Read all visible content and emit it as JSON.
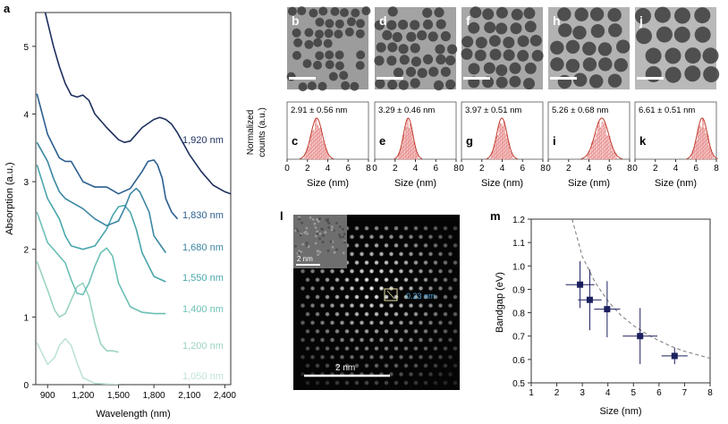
{
  "figure": {
    "panel_a": {
      "letter": "a",
      "ylabel": "Absorption (a.u.)",
      "xlabel": "Wavelength (nm)",
      "yticks": [
        "0",
        "1",
        "2",
        "3",
        "4",
        "5"
      ],
      "xticks": [
        "900",
        "1,200",
        "1,500",
        "1,800",
        "2,100",
        "2,400"
      ],
      "peak_labels": [
        "1,920 nm",
        "1,830 nm",
        "1,680 nm",
        "1,550 nm",
        "1,400 nm",
        "1,200 nm",
        "1,050 nm"
      ]
    },
    "tem_letters": [
      "b",
      "d",
      "f",
      "h",
      "j"
    ],
    "histograms": [
      {
        "letter": "c",
        "label": "2.91 ± 0.56 nm",
        "mean": 2.91,
        "sd": 0.56
      },
      {
        "letter": "e",
        "label": "3.29 ± 0.46 nm",
        "mean": 3.29,
        "sd": 0.46
      },
      {
        "letter": "g",
        "label": "3.97 ± 0.51 nm",
        "mean": 3.97,
        "sd": 0.51
      },
      {
        "letter": "i",
        "label": "5.26 ± 0.68 nm",
        "mean": 5.26,
        "sd": 0.68
      },
      {
        "letter": "k",
        "label": "6.61 ± 0.51 nm",
        "mean": 6.61,
        "sd": 0.51
      }
    ],
    "hist_ylabel_line1": "Normalized",
    "hist_ylabel_line2": "counts (a.u.)",
    "hist_xlabel": "Size (nm)",
    "hist_xticks": [
      "0",
      "2",
      "4",
      "6",
      "8"
    ],
    "panel_l": {
      "letter": "l",
      "inset_scale": "2 nm",
      "main_scale": "2 nm",
      "spacing_label": "0.23 nm"
    },
    "panel_m": {
      "letter": "m",
      "xlabel": "Size (nm)",
      "ylabel": "Bandgap (eV)",
      "xticks": [
        "1",
        "2",
        "3",
        "4",
        "5",
        "6",
        "7",
        "8"
      ],
      "yticks": [
        "0.5",
        "0.6",
        "0.7",
        "0.8",
        "0.9",
        "1.0",
        "1.1",
        "1.2"
      ]
    }
  },
  "chart_data": [
    {
      "type": "line",
      "id": "a",
      "title": "",
      "xlabel": "Wavelength (nm)",
      "ylabel": "Absorption (a.u.)",
      "xlim": [
        800,
        2450
      ],
      "ylim": [
        0,
        5.5
      ],
      "series": [
        {
          "name": "1,050 nm",
          "color": "#bfe3d2",
          "x": [
            810,
            900,
            960,
            1000,
            1050,
            1100,
            1150,
            1200,
            1300,
            1400,
            1500
          ],
          "y": [
            0.62,
            0.3,
            0.4,
            0.58,
            0.68,
            0.58,
            0.32,
            0.1,
            0.02,
            0.01,
            0.0
          ]
        },
        {
          "name": "1,200 nm",
          "color": "#9bd3c0",
          "x": [
            810,
            900,
            960,
            1000,
            1050,
            1100,
            1150,
            1200,
            1250,
            1300,
            1350,
            1400,
            1450,
            1500
          ],
          "y": [
            1.82,
            1.4,
            1.1,
            1.0,
            1.05,
            1.25,
            1.45,
            1.5,
            1.3,
            0.9,
            0.6,
            0.5,
            0.5,
            0.48
          ]
        },
        {
          "name": "1,400 nm",
          "color": "#6cc0b6",
          "x": [
            810,
            900,
            950,
            1000,
            1050,
            1100,
            1150,
            1200,
            1250,
            1300,
            1350,
            1400,
            1450,
            1500,
            1600,
            1700,
            1800,
            1900
          ],
          "y": [
            2.55,
            2.1,
            2.0,
            1.9,
            1.8,
            1.55,
            1.35,
            1.33,
            1.5,
            1.75,
            1.95,
            2.02,
            1.9,
            1.5,
            1.15,
            1.07,
            1.05,
            1.05
          ]
        },
        {
          "name": "1,550 nm",
          "color": "#4aa6ad",
          "x": [
            810,
            900,
            950,
            1000,
            1050,
            1100,
            1200,
            1300,
            1400,
            1450,
            1500,
            1550,
            1600,
            1650,
            1700,
            1800,
            1900
          ],
          "y": [
            3.25,
            2.75,
            2.6,
            2.45,
            2.2,
            2.05,
            2.0,
            2.05,
            2.3,
            2.5,
            2.63,
            2.65,
            2.55,
            2.3,
            1.95,
            1.6,
            1.52
          ]
        },
        {
          "name": "1,680 nm",
          "color": "#3a86a3",
          "x": [
            810,
            900,
            950,
            1000,
            1050,
            1100,
            1200,
            1300,
            1400,
            1500,
            1550,
            1600,
            1650,
            1680,
            1720,
            1760,
            1800,
            1900
          ],
          "y": [
            3.58,
            3.3,
            3.05,
            2.85,
            2.75,
            2.7,
            2.6,
            2.45,
            2.35,
            2.42,
            2.6,
            2.82,
            2.9,
            2.85,
            2.7,
            2.55,
            2.2,
            1.95
          ]
        },
        {
          "name": "1,830 nm",
          "color": "#2b5f8f",
          "x": [
            810,
            900,
            1000,
            1050,
            1100,
            1200,
            1300,
            1400,
            1500,
            1600,
            1700,
            1750,
            1800,
            1830,
            1870,
            1900,
            1950,
            2000
          ],
          "y": [
            4.3,
            3.7,
            3.35,
            3.3,
            3.3,
            3.0,
            2.92,
            2.92,
            2.82,
            2.9,
            3.15,
            3.3,
            3.32,
            3.25,
            3.05,
            2.75,
            2.55,
            2.45
          ]
        },
        {
          "name": "1,920 nm",
          "color": "#1c2f5e",
          "x": [
            880,
            950,
            1000,
            1050,
            1100,
            1150,
            1200,
            1250,
            1300,
            1400,
            1500,
            1550,
            1600,
            1700,
            1800,
            1850,
            1900,
            1950,
            2000,
            2100,
            2200,
            2300,
            2400,
            2450
          ],
          "y": [
            5.5,
            5.0,
            4.7,
            4.45,
            4.28,
            4.25,
            4.28,
            4.2,
            4.0,
            3.8,
            3.62,
            3.58,
            3.6,
            3.8,
            3.92,
            3.95,
            3.92,
            3.85,
            3.72,
            3.4,
            3.15,
            2.95,
            2.85,
            2.82
          ]
        }
      ]
    },
    {
      "type": "bar",
      "id": "c",
      "xlabel": "Size (nm)",
      "ylabel": "Normalized counts (a.u.)",
      "xlim": [
        0,
        8
      ],
      "mean": 2.91,
      "sd": 0.56
    },
    {
      "type": "bar",
      "id": "e",
      "xlabel": "Size (nm)",
      "xlim": [
        0,
        8
      ],
      "mean": 3.29,
      "sd": 0.46
    },
    {
      "type": "bar",
      "id": "g",
      "xlabel": "Size (nm)",
      "xlim": [
        0,
        8
      ],
      "mean": 3.97,
      "sd": 0.51
    },
    {
      "type": "bar",
      "id": "i",
      "xlabel": "Size (nm)",
      "xlim": [
        0,
        8
      ],
      "mean": 5.26,
      "sd": 0.68
    },
    {
      "type": "bar",
      "id": "k",
      "xlabel": "Size (nm)",
      "xlim": [
        0,
        8
      ],
      "mean": 6.61,
      "sd": 0.51
    },
    {
      "type": "scatter",
      "id": "m",
      "xlabel": "Size (nm)",
      "ylabel": "Bandgap (eV)",
      "xlim": [
        1,
        8
      ],
      "ylim": [
        0.5,
        1.2
      ],
      "points": [
        {
          "x": 2.91,
          "y": 0.92,
          "xerr": 0.56,
          "yerr": 0.1
        },
        {
          "x": 3.29,
          "y": 0.855,
          "xerr": 0.46,
          "yerr": 0.13
        },
        {
          "x": 3.97,
          "y": 0.815,
          "xerr": 0.51,
          "yerr": 0.12
        },
        {
          "x": 5.26,
          "y": 0.7,
          "xerr": 0.68,
          "yerr": 0.12
        },
        {
          "x": 6.61,
          "y": 0.615,
          "xerr": 0.51,
          "yerr": 0.035
        }
      ],
      "fit": {
        "style": "dashed",
        "x": [
          2.6,
          3,
          3.5,
          4,
          4.5,
          5,
          5.5,
          6,
          6.5,
          7,
          7.5,
          8
        ],
        "y": [
          1.2,
          1.04,
          0.93,
          0.85,
          0.79,
          0.745,
          0.71,
          0.68,
          0.655,
          0.635,
          0.62,
          0.605
        ]
      }
    }
  ]
}
